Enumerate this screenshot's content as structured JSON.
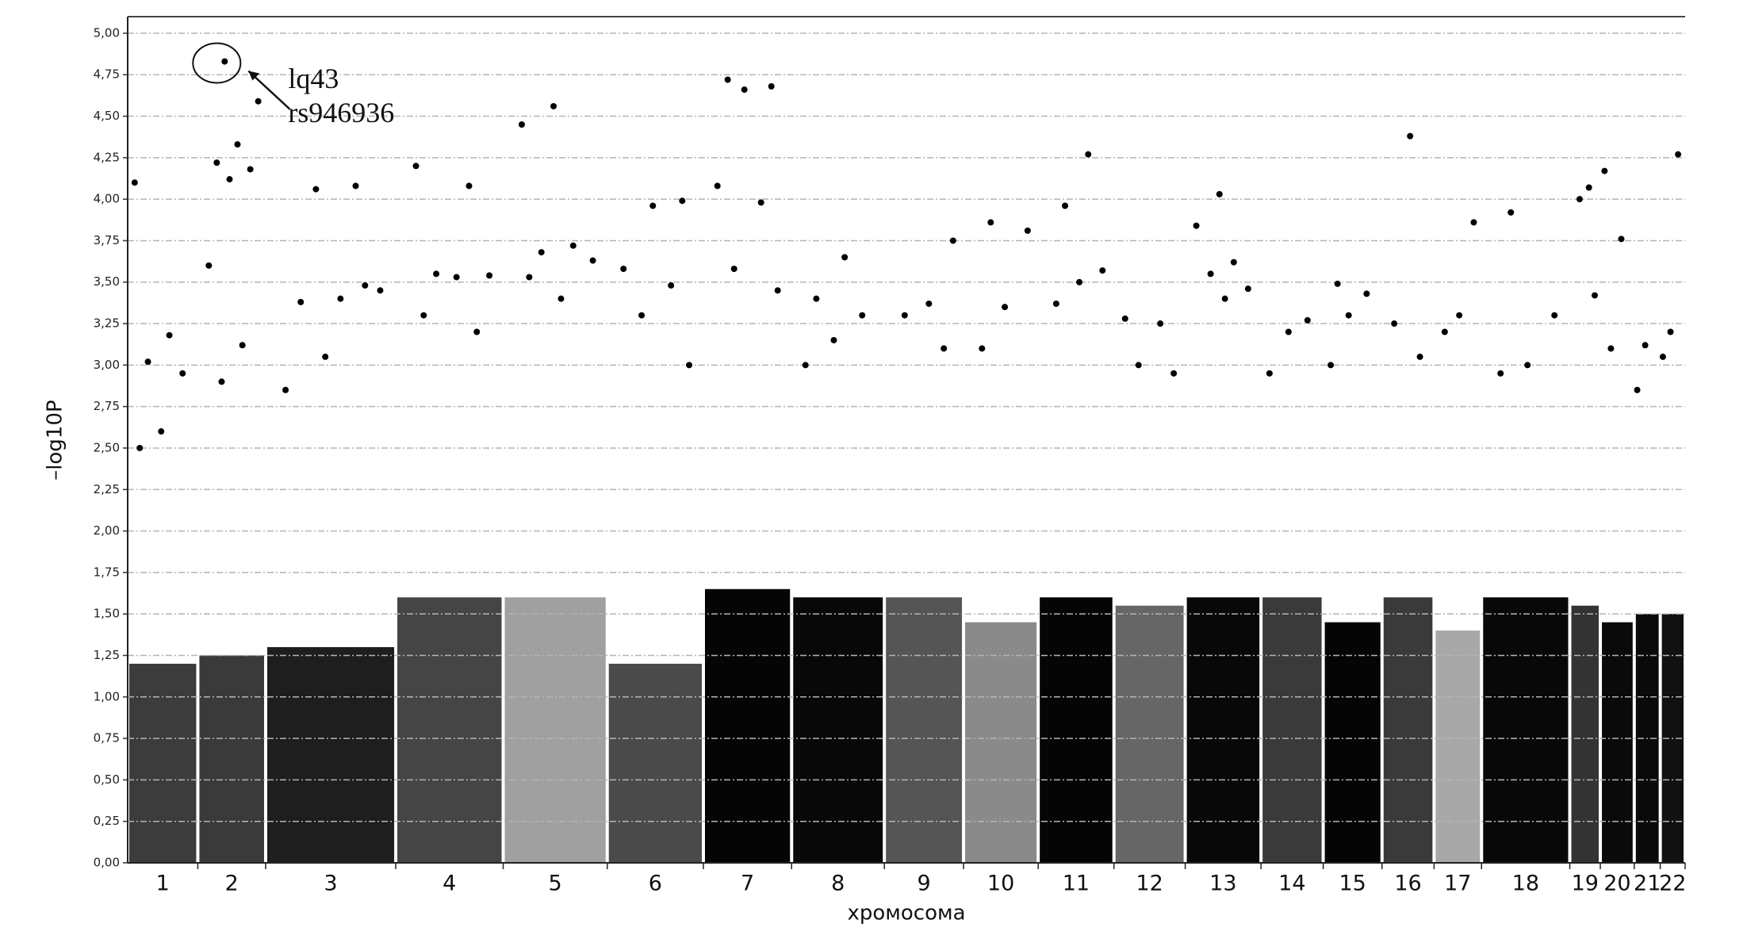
{
  "chart_data": {
    "type": "manhattan",
    "y_label": "–log10P",
    "x_label": "хромосома",
    "ylim": [
      0,
      5.1
    ],
    "yticks": [
      {
        "value": 0,
        "label": "0,00"
      },
      {
        "value": 0.25,
        "label": "0,25"
      },
      {
        "value": 0.5,
        "label": "0,50"
      },
      {
        "value": 0.75,
        "label": "0,75"
      },
      {
        "value": 1,
        "label": "1,00"
      },
      {
        "value": 1.25,
        "label": "1,25"
      },
      {
        "value": 1.5,
        "label": "1,50"
      },
      {
        "value": 1.75,
        "label": "1,75"
      },
      {
        "value": 2,
        "label": "2,00"
      },
      {
        "value": 2.25,
        "label": "2,25"
      },
      {
        "value": 2.5,
        "label": "2,50"
      },
      {
        "value": 2.75,
        "label": "2,75"
      },
      {
        "value": 3,
        "label": "3,00"
      },
      {
        "value": 3.25,
        "label": "3,25"
      },
      {
        "value": 3.5,
        "label": "3,50"
      },
      {
        "value": 3.75,
        "label": "3,75"
      },
      {
        "value": 4,
        "label": "4,00"
      },
      {
        "value": 4.25,
        "label": "4,25"
      },
      {
        "value": 4.5,
        "label": "4,50"
      },
      {
        "value": 4.75,
        "label": "4,75"
      },
      {
        "value": 5,
        "label": "5,00"
      }
    ],
    "grid": true,
    "point_color": "#000000",
    "annotation": [
      "lq43",
      "rs946936"
    ],
    "series": [
      {
        "name": "1",
        "color": "#3c3c3c",
        "band_top": 1.2,
        "values": [
          4.1,
          3.18,
          3.02,
          2.95,
          2.6,
          2.5
        ]
      },
      {
        "name": "2",
        "color": "#3a3a3a",
        "band_top": 1.25,
        "values": [
          4.83,
          4.59,
          4.33,
          4.22,
          4.18,
          4.12,
          3.6,
          3.12,
          2.9
        ]
      },
      {
        "name": "3",
        "color": "#1e1e1e",
        "band_top": 1.3,
        "values": [
          4.08,
          4.06,
          3.45,
          3.4,
          3.38,
          3.48,
          3.05,
          2.85
        ]
      },
      {
        "name": "4",
        "color": "#454545",
        "band_top": 1.6,
        "values": [
          4.2,
          4.08,
          3.55,
          3.54,
          3.53,
          3.3,
          3.2
        ]
      },
      {
        "name": "5",
        "color": "#a0a0a0",
        "band_top": 1.6,
        "values": [
          4.56,
          4.45,
          3.72,
          3.68,
          3.63,
          3.4,
          3.53
        ]
      },
      {
        "name": "6",
        "color": "#4a4a4a",
        "band_top": 1.2,
        "values": [
          3.99,
          3.96,
          3.58,
          3.48,
          3.3,
          3.0
        ]
      },
      {
        "name": "7",
        "color": "#050505",
        "band_top": 1.65,
        "values": [
          4.72,
          4.68,
          4.66,
          4.08,
          3.98,
          3.58,
          3.45
        ]
      },
      {
        "name": "8",
        "color": "#080808",
        "band_top": 1.6,
        "values": [
          3.65,
          3.4,
          3.3,
          3.15,
          3.0
        ]
      },
      {
        "name": "9",
        "color": "#555555",
        "band_top": 1.6,
        "values": [
          3.75,
          3.37,
          3.3,
          3.1
        ]
      },
      {
        "name": "10",
        "color": "#8a8a8a",
        "band_top": 1.45,
        "values": [
          3.86,
          3.81,
          3.35,
          3.1
        ]
      },
      {
        "name": "11",
        "color": "#050505",
        "band_top": 1.6,
        "values": [
          4.27,
          3.96,
          3.57,
          3.5,
          3.37
        ]
      },
      {
        "name": "12",
        "color": "#666666",
        "band_top": 1.55,
        "values": [
          3.28,
          3.25,
          3.0,
          2.95
        ]
      },
      {
        "name": "13",
        "color": "#080808",
        "band_top": 1.6,
        "values": [
          4.03,
          3.84,
          3.62,
          3.55,
          3.46,
          3.4
        ]
      },
      {
        "name": "14",
        "color": "#3a3a3a",
        "band_top": 1.6,
        "values": [
          3.27,
          3.2,
          2.95
        ]
      },
      {
        "name": "15",
        "color": "#050505",
        "band_top": 1.45,
        "values": [
          3.49,
          3.43,
          3.3,
          3.0
        ]
      },
      {
        "name": "16",
        "color": "#3a3a3a",
        "band_top": 1.6,
        "values": [
          4.38,
          3.25,
          3.05
        ]
      },
      {
        "name": "17",
        "color": "#a8a8a8",
        "band_top": 1.4,
        "values": [
          3.86,
          3.3,
          3.2
        ]
      },
      {
        "name": "18",
        "color": "#080808",
        "band_top": 1.6,
        "values": [
          3.92,
          3.3,
          3.0,
          2.95
        ]
      },
      {
        "name": "19",
        "color": "#333333",
        "band_top": 1.55,
        "values": [
          4.07,
          4.0,
          3.42
        ]
      },
      {
        "name": "20",
        "color": "#0a0a0a",
        "band_top": 1.45,
        "values": [
          4.17,
          3.76,
          3.1
        ]
      },
      {
        "name": "21",
        "color": "#0a0a0a",
        "band_top": 1.5,
        "values": [
          3.12,
          2.85
        ]
      },
      {
        "name": "22",
        "color": "#111111",
        "band_top": 1.5,
        "values": [
          4.27,
          3.2,
          3.05
        ]
      }
    ]
  }
}
